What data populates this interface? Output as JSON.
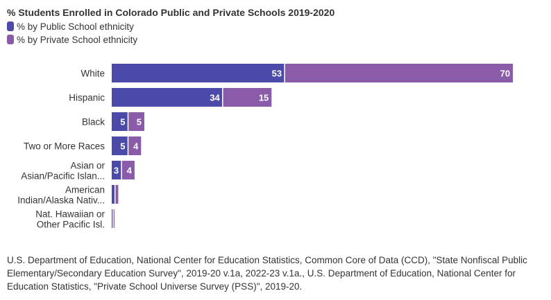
{
  "chart_data": {
    "type": "bar",
    "stacked": true,
    "orientation": "horizontal",
    "title": "% Students Enrolled in Colorado Public and Private Schools 2019-2020",
    "categories": [
      [
        "White"
      ],
      [
        "Hispanic"
      ],
      [
        "Black"
      ],
      [
        "Two or More Races"
      ],
      [
        "Asian or",
        "Asian/Pacific Islan..."
      ],
      [
        "American",
        "Indian/Alaska Nativ..."
      ],
      [
        "Nat. Hawaiian or",
        "Other Pacific Isl."
      ]
    ],
    "series": [
      {
        "name": "% by Public School ethnicity",
        "color": "#4b4aa8",
        "values": [
          53,
          34,
          5,
          5,
          3,
          1,
          0.2
        ]
      },
      {
        "name": "% by Private School ethnicity",
        "color": "#8a5ba8",
        "values": [
          70,
          15,
          5,
          4,
          4,
          1,
          0.2
        ]
      }
    ],
    "legend_position": "top-left",
    "grid": false,
    "data_labels": true
  },
  "source": "U.S. Department of Education, National Center for Education Statistics, Common Core of Data (CCD), \"State Nonfiscal Public Elementary/Secondary Education Survey\", 2019-20 v.1a, 2022-23 v.1a., U.S. Department of Education, National Center for Education Statistics, \"Private School Universe Survey (PSS)\", 2019-20."
}
